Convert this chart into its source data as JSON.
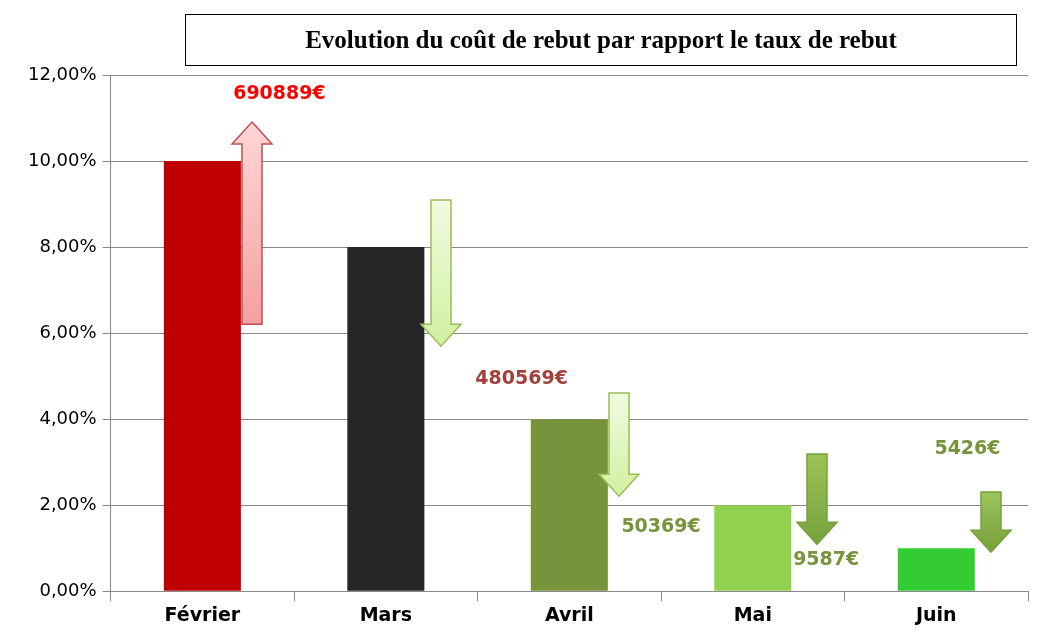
{
  "chart_data": {
    "type": "bar",
    "title": "Evolution du coût de rebut par rapport le taux de rebut",
    "categories": [
      "Février",
      "Mars",
      "Avril",
      "Mai",
      "Juin"
    ],
    "values": [
      10,
      8,
      4,
      2,
      1
    ],
    "colors": [
      "#c00000",
      "#262626",
      "#77933c",
      "#92d050",
      "#33cc33"
    ],
    "ylim": [
      0,
      12
    ],
    "yticks": [
      {
        "value": 0,
        "label": "0,00%"
      },
      {
        "value": 2,
        "label": "2,00%"
      },
      {
        "value": 4,
        "label": "4,00%"
      },
      {
        "value": 6,
        "label": "6,00%"
      },
      {
        "value": 8,
        "label": "8,00%"
      },
      {
        "value": 10,
        "label": "10,00%"
      },
      {
        "value": 12,
        "label": "12,00%"
      }
    ],
    "grid": "y",
    "legend": false,
    "annotations": [
      "690889€",
      "480569€",
      "50369€",
      "9587€",
      "5426€"
    ]
  }
}
